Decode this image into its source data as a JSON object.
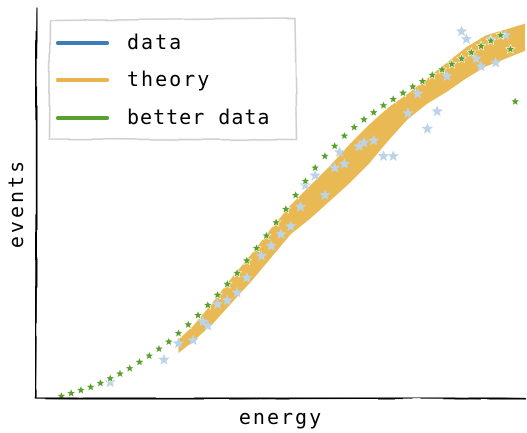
{
  "chart_data": {
    "type": "scatter",
    "title": "",
    "xlabel": "energy",
    "ylabel": "events",
    "xlim": [
      0,
      10
    ],
    "ylim": [
      0,
      10
    ],
    "grid": false,
    "legend_placement": "top-left",
    "legend": [
      "data",
      "theory",
      "better data"
    ],
    "series": [
      {
        "name": "data",
        "kind": "scatter",
        "marker": "star",
        "color": "#bcd3e8",
        "x": [
          1.5,
          2.6,
          2.9,
          3.2,
          3.4,
          3.5,
          3.7,
          3.9,
          4.1,
          4.3,
          4.6,
          4.8,
          5.0,
          5.2,
          5.4,
          5.5,
          5.7,
          5.9,
          6.1,
          6.2,
          6.3,
          6.6,
          6.7,
          6.9,
          7.1,
          7.3,
          7.6,
          7.8,
          8.0,
          8.2,
          8.4,
          8.7,
          8.8,
          9.0,
          9.1,
          9.3,
          9.4,
          9.6
        ],
        "y": [
          0.4,
          0.98,
          1.4,
          1.48,
          1.96,
          1.85,
          2.4,
          2.5,
          2.7,
          3.08,
          3.64,
          3.9,
          4.2,
          4.4,
          4.9,
          5.45,
          5.7,
          5.2,
          5.9,
          6.3,
          6.0,
          6.45,
          6.55,
          6.6,
          6.2,
          6.2,
          7.3,
          7.8,
          6.9,
          7.35,
          8.25,
          9.4,
          9.2,
          8.7,
          8.5,
          9.2,
          8.6,
          9.3
        ]
      },
      {
        "name": "theory",
        "kind": "band",
        "color": "#e8b54a",
        "x": [
          2.9,
          3.2,
          3.6,
          4.0,
          4.4,
          4.8,
          5.2,
          5.6,
          6.0,
          6.4,
          6.8,
          7.2,
          7.6,
          8.0,
          8.4,
          8.8,
          9.2,
          9.6,
          10.0
        ],
        "lower": [
          1.15,
          1.45,
          1.9,
          2.45,
          3.0,
          3.6,
          4.2,
          4.6,
          5.05,
          5.5,
          6.0,
          6.6,
          7.15,
          7.55,
          7.85,
          8.2,
          8.5,
          8.7,
          8.9
        ],
        "upper": [
          1.5,
          1.85,
          2.45,
          3.1,
          3.7,
          4.35,
          4.95,
          5.45,
          5.95,
          6.5,
          7.0,
          7.45,
          7.8,
          8.2,
          8.6,
          9.0,
          9.3,
          9.45,
          9.6
        ]
      },
      {
        "name": "better data",
        "kind": "scatter",
        "marker": "star",
        "color": "#5aa02c",
        "x": [
          0.5,
          0.7,
          0.9,
          1.1,
          1.3,
          1.5,
          1.7,
          1.9,
          2.1,
          2.3,
          2.5,
          2.7,
          2.9,
          3.1,
          3.3,
          3.5,
          3.7,
          3.9,
          4.1,
          4.3,
          4.5,
          4.7,
          4.9,
          5.1,
          5.3,
          5.5,
          5.7,
          5.9,
          6.1,
          6.3,
          6.5,
          6.7,
          6.9,
          7.1,
          7.3,
          7.5,
          7.7,
          7.9,
          8.1,
          8.3,
          8.5,
          8.7,
          8.9,
          9.1,
          9.3,
          9.5,
          9.7,
          9.8
        ],
        "y": [
          0.05,
          0.12,
          0.2,
          0.28,
          0.38,
          0.5,
          0.62,
          0.76,
          0.92,
          1.08,
          1.26,
          1.44,
          1.66,
          1.88,
          2.12,
          2.38,
          2.64,
          2.92,
          3.2,
          3.52,
          3.84,
          4.16,
          4.5,
          4.84,
          5.2,
          5.56,
          5.9,
          6.2,
          6.46,
          6.72,
          6.94,
          7.14,
          7.32,
          7.5,
          7.66,
          7.82,
          7.98,
          8.12,
          8.28,
          8.42,
          8.56,
          8.7,
          8.86,
          9.02,
          9.16,
          9.3,
          8.94,
          7.6
        ]
      }
    ]
  }
}
